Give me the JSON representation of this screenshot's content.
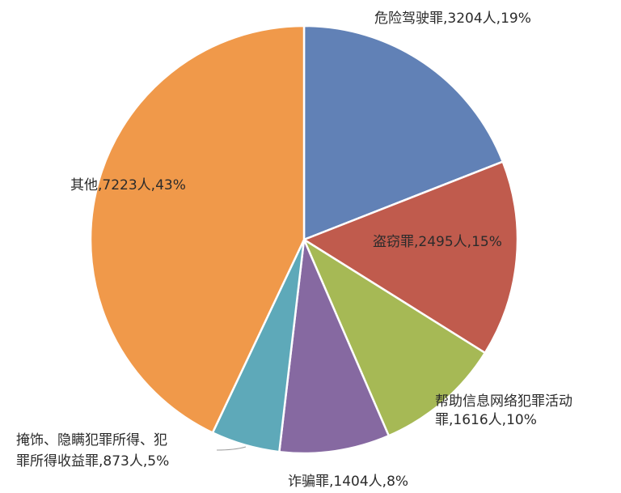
{
  "chart_data": {
    "type": "pie",
    "title": "",
    "slices": [
      {
        "name": "危险驾驶罪",
        "value": 3204,
        "percent": 19,
        "color": "#6181b6",
        "label_lines": [
          "危险驾驶罪,3204人,19%"
        ]
      },
      {
        "name": "盗窃罪",
        "value": 2495,
        "percent": 15,
        "color": "#c05b4d",
        "label_lines": [
          "盗窃罪,2495人,15%"
        ]
      },
      {
        "name": "帮助信息网络犯罪活动罪",
        "value": 1616,
        "percent": 10,
        "color": "#a6b955",
        "label_lines": [
          "帮助信息网络犯罪活动",
          "罪,1616人,10%"
        ]
      },
      {
        "name": "诈骗罪",
        "value": 1404,
        "percent": 8,
        "color": "#8669a1",
        "label_lines": [
          "诈骗罪,1404人,8%"
        ]
      },
      {
        "name": "掩饰、隐瞒犯罪所得、犯罪所得收益罪",
        "value": 873,
        "percent": 5,
        "color": "#5ea9b9",
        "label_lines": [
          "掩饰、隐瞒犯罪所得、犯",
          "罪所得收益罪,873人,5%"
        ]
      },
      {
        "name": "其他",
        "value": 7223,
        "percent": 43,
        "color": "#f0994a",
        "label_lines": [
          "其他,7223人,43%"
        ]
      }
    ]
  }
}
